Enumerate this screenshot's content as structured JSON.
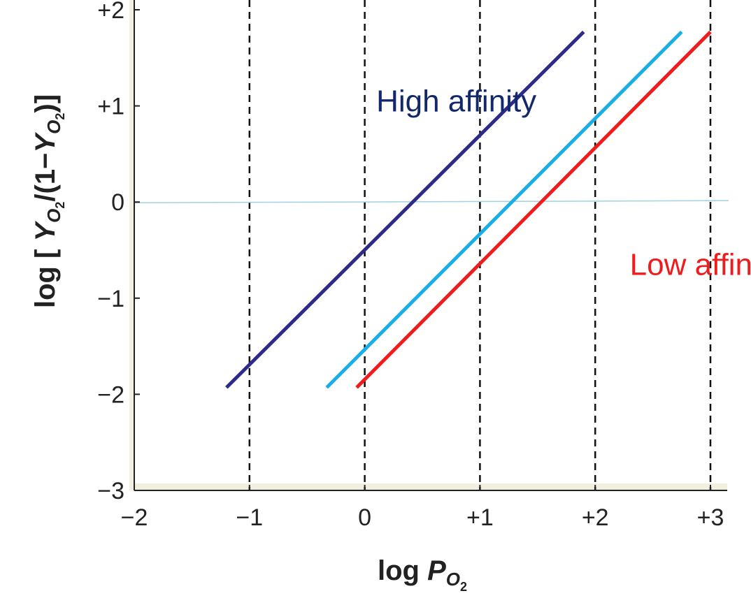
{
  "chart_data": {
    "type": "line",
    "xlabel": {
      "main": "log ",
      "var": "P",
      "sub": "O",
      "subsub": "2"
    },
    "ylabel": {
      "pre": "log [ ",
      "y": "Y",
      "sub": "O",
      "subsub": "2",
      "mid": "/(1−",
      "y2": "Y",
      "sub2": "O",
      "subsub2": "2",
      "post": ")]"
    },
    "xlim": [
      -2,
      3
    ],
    "ylim": [
      -3,
      2
    ],
    "x_ticks": [
      -2,
      -1,
      0,
      1,
      2,
      3
    ],
    "x_tick_labels": [
      "−2",
      "−1",
      "0",
      "+1",
      "+2",
      "+3"
    ],
    "y_ticks": [
      -3,
      -2,
      -1,
      0,
      1,
      2
    ],
    "y_tick_labels": [
      "−3",
      "−2",
      "−1",
      "0",
      "+1",
      "+2"
    ],
    "vertical_dashed_gridlines_at_x": [
      -1,
      0,
      1,
      2,
      3
    ],
    "reference_line": {
      "y": 0,
      "color": "#9fd3de"
    },
    "series": [
      {
        "color": "#2e2a8a",
        "x": [
          -1.2,
          1.9
        ],
        "y": [
          -1.93,
          1.77
        ]
      },
      {
        "color": "#1aaee6",
        "x": [
          -0.33,
          2.75
        ],
        "y": [
          -1.93,
          1.77
        ]
      },
      {
        "color": "#ee1c1c",
        "x": [
          -0.07,
          3.0
        ],
        "y": [
          -1.93,
          1.77
        ]
      }
    ],
    "annotations": [
      {
        "text": "High affinity",
        "x": 0.1,
        "y": 1.0,
        "color": "#13286b"
      },
      {
        "text": "Low affinity",
        "x": 2.3,
        "y": -0.7,
        "color": "#ee1c1c"
      }
    ],
    "colors": {
      "panel_background": "#f1efdf",
      "dashed_grid": "#111111",
      "axis": "#222222"
    }
  }
}
